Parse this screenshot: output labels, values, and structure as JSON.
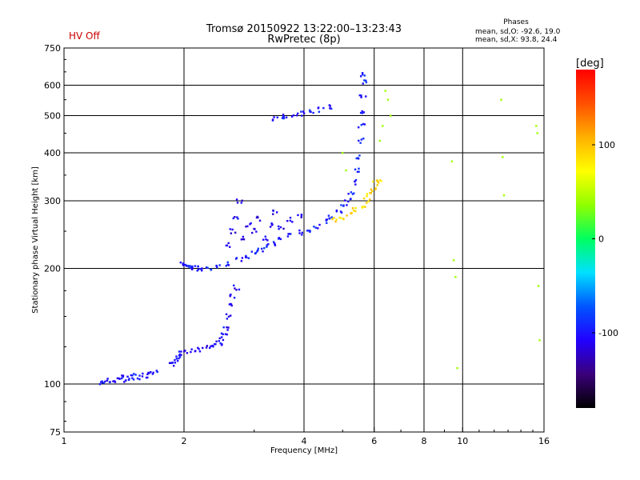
{
  "header": {
    "hv_status": "HV Off",
    "title_line1": "Tromsø 20150922 13:22:00–13:23:43",
    "title_line2": "RwPretec (8p)",
    "stats_title": "Phases",
    "stats_line1": "mean, sd,O: -92.6, 19.0",
    "stats_line2": "mean, sd,X:  93.8, 24.4"
  },
  "colors": {
    "hv_status": "#cc0000",
    "grid": "#000000",
    "background": "#ffffff",
    "colorbar_stops": [
      "#000000",
      "#3a007a",
      "#2200ff",
      "#0055ff",
      "#00e0ff",
      "#00ff60",
      "#90ff00",
      "#ffff00",
      "#ffb000",
      "#ff5000",
      "#ff0000"
    ]
  },
  "colorbar": {
    "label": "[deg]",
    "range": [
      -180,
      180
    ],
    "ticks": [
      {
        "value": 100,
        "label": "100"
      },
      {
        "value": 0,
        "label": "0"
      },
      {
        "value": -100,
        "label": "-100"
      }
    ]
  },
  "chart_data": {
    "type": "scatter",
    "title": "Tromsø 20150922 13:22:00–13:23:43",
    "subtitle": "RwPretec (8p)",
    "xlabel": "Frequency [MHz]",
    "ylabel": "Stationary phase Virtual Height [km]",
    "x_scale": "log",
    "y_scale": "log",
    "xlim": [
      1,
      16
    ],
    "ylim": [
      75,
      750
    ],
    "x_ticks": [
      {
        "value": 1,
        "label": "1"
      },
      {
        "value": 2,
        "label": "2"
      },
      {
        "value": 4,
        "label": "4"
      },
      {
        "value": 6,
        "label": "6"
      },
      {
        "value": 8,
        "label": "8"
      },
      {
        "value": 10,
        "label": "10"
      },
      {
        "value": 16,
        "label": "16"
      }
    ],
    "y_ticks": [
      {
        "value": 75,
        "label": "75"
      },
      {
        "value": 100,
        "label": "100"
      },
      {
        "value": 200,
        "label": "200"
      },
      {
        "value": 300,
        "label": "300"
      },
      {
        "value": 400,
        "label": "400"
      },
      {
        "value": 500,
        "label": "500"
      },
      {
        "value": 600,
        "label": "600"
      },
      {
        "value": 750,
        "label": "750"
      }
    ],
    "x_gridlines": [
      2,
      4,
      6,
      8,
      10
    ],
    "y_gridlines": [
      100,
      200,
      300,
      400,
      500,
      600
    ],
    "grid": true,
    "color_dimension": "phase [deg]",
    "traces": [
      {
        "note_type": "E-layer trace",
        "phase": -100,
        "points": [
          [
            1.25,
            101
          ],
          [
            1.28,
            102
          ],
          [
            1.32,
            101
          ],
          [
            1.36,
            103
          ],
          [
            1.4,
            104
          ],
          [
            1.43,
            102
          ],
          [
            1.47,
            104
          ],
          [
            1.5,
            105
          ],
          [
            1.55,
            104
          ],
          [
            1.6,
            105
          ],
          [
            1.65,
            106
          ],
          [
            1.7,
            107
          ]
        ]
      },
      {
        "note_type": "E-layer cusp",
        "phase": -105,
        "points": [
          [
            1.87,
            112
          ],
          [
            1.9,
            115
          ],
          [
            1.92,
            118
          ],
          [
            1.95,
            120
          ],
          [
            2.0,
            121
          ],
          [
            2.1,
            122
          ],
          [
            2.2,
            123
          ],
          [
            2.3,
            124
          ],
          [
            2.4,
            126
          ],
          [
            2.45,
            128
          ],
          [
            2.48,
            131
          ],
          [
            2.52,
            135
          ],
          [
            2.55,
            140
          ],
          [
            2.58,
            150
          ],
          [
            2.62,
            160
          ],
          [
            2.66,
            170
          ],
          [
            2.7,
            178
          ]
        ]
      },
      {
        "note_type": "F1 trace",
        "phase": -95,
        "points": [
          [
            1.98,
            205
          ],
          [
            2.02,
            204
          ],
          [
            2.06,
            202
          ],
          [
            2.1,
            201
          ],
          [
            2.15,
            200
          ],
          [
            2.2,
            199
          ],
          [
            2.3,
            200
          ],
          [
            2.45,
            203
          ],
          [
            2.6,
            206
          ],
          [
            2.75,
            210
          ],
          [
            2.9,
            214
          ],
          [
            3.0,
            220
          ],
          [
            3.1,
            224
          ],
          [
            3.2,
            228
          ],
          [
            3.35,
            233
          ],
          [
            3.5,
            238
          ],
          [
            3.7,
            243
          ],
          [
            3.9,
            248
          ],
          [
            4.1,
            252
          ],
          [
            4.3,
            258
          ],
          [
            4.5,
            265
          ],
          [
            4.7,
            272
          ],
          [
            4.9,
            280
          ],
          [
            5.05,
            290
          ],
          [
            5.15,
            300
          ],
          [
            5.25,
            315
          ],
          [
            5.35,
            335
          ],
          [
            5.45,
            360
          ],
          [
            5.5,
            390
          ],
          [
            5.55,
            430
          ],
          [
            5.58,
            470
          ],
          [
            5.6,
            510
          ],
          [
            5.62,
            560
          ],
          [
            5.63,
            610
          ],
          [
            5.64,
            640
          ]
        ]
      },
      {
        "note_type": "F2 X trace",
        "phase": 90,
        "points": [
          [
            4.8,
            268
          ],
          [
            5.0,
            272
          ],
          [
            5.2,
            278
          ],
          [
            5.4,
            285
          ],
          [
            5.6,
            292
          ],
          [
            5.75,
            300
          ],
          [
            5.85,
            310
          ],
          [
            5.95,
            322
          ],
          [
            6.05,
            332
          ],
          [
            6.15,
            342
          ]
        ]
      },
      {
        "note_type": "F2 spread",
        "phase": -110,
        "points": [
          [
            2.6,
            230
          ],
          [
            2.65,
            250
          ],
          [
            2.7,
            270
          ],
          [
            2.75,
            300
          ],
          [
            2.8,
            240
          ],
          [
            2.9,
            260
          ],
          [
            3.0,
            250
          ],
          [
            3.1,
            270
          ],
          [
            3.2,
            240
          ],
          [
            3.3,
            260
          ],
          [
            3.4,
            280
          ],
          [
            3.5,
            255
          ],
          [
            3.7,
            268
          ],
          [
            3.9,
            275
          ]
        ]
      },
      {
        "note_type": "multiple reflection",
        "phase": -100,
        "points": [
          [
            3.4,
            490
          ],
          [
            3.5,
            495
          ],
          [
            3.6,
            500
          ],
          [
            3.8,
            502
          ],
          [
            4.0,
            505
          ],
          [
            4.2,
            510
          ],
          [
            4.4,
            518
          ],
          [
            4.6,
            525
          ]
        ]
      },
      {
        "note_type": "scattered",
        "phase": 40,
        "points": [
          [
            6.4,
            580
          ],
          [
            6.5,
            550
          ],
          [
            6.6,
            500
          ],
          [
            9.4,
            380
          ],
          [
            9.5,
            210
          ],
          [
            9.6,
            190
          ],
          [
            9.7,
            110
          ],
          [
            12.5,
            550
          ],
          [
            12.6,
            390
          ],
          [
            12.7,
            310
          ],
          [
            15.3,
            470
          ],
          [
            15.4,
            450
          ],
          [
            15.5,
            180
          ],
          [
            15.6,
            130
          ],
          [
            5.0,
            400
          ],
          [
            5.1,
            360
          ],
          [
            6.2,
            430
          ],
          [
            6.3,
            470
          ]
        ]
      }
    ]
  }
}
